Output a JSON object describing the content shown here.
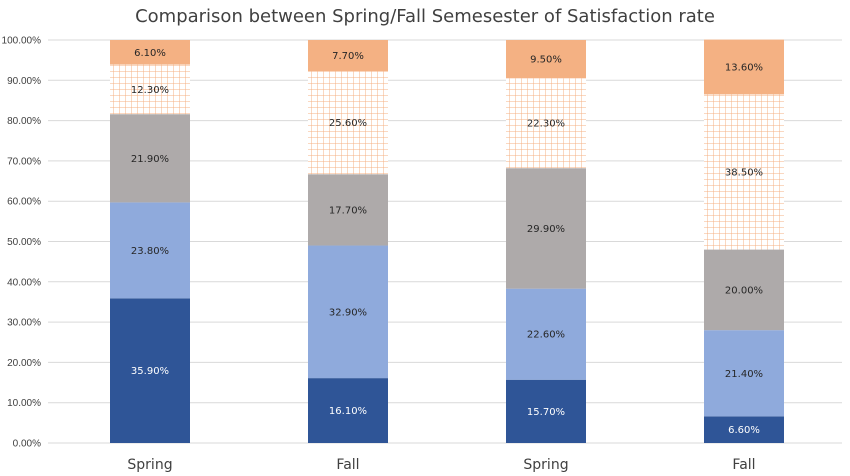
{
  "chart_data": {
    "type": "bar",
    "stacked": true,
    "title": "Comparison between Spring/Fall Semesester of Satisfaction rate",
    "xlabel": "",
    "ylabel": "",
    "categories": [
      "Spring",
      "Fall",
      "Spring",
      "Fall"
    ],
    "ylim": [
      0,
      100
    ],
    "y_ticks": [
      "0.00%",
      "10.00%",
      "20.00%",
      "30.00%",
      "40.00%",
      "50.00%",
      "60.00%",
      "70.00%",
      "80.00%",
      "90.00%",
      "100.00%"
    ],
    "grid": true,
    "legend": "none",
    "series": [
      {
        "values": [
          35.9,
          16.1,
          15.7,
          6.6
        ],
        "labels": [
          "35.90%",
          "16.10%",
          "15.70%",
          "6.60%"
        ],
        "color": "#2f5597",
        "pattern": "solid",
        "label_color": "#ffffff"
      },
      {
        "values": [
          23.8,
          32.9,
          22.6,
          21.4
        ],
        "labels": [
          "23.80%",
          "32.90%",
          "22.60%",
          "21.40%"
        ],
        "color": "#8faadc",
        "pattern": "solid",
        "label_color": "#262626"
      },
      {
        "values": [
          21.9,
          17.7,
          29.9,
          20.0
        ],
        "labels": [
          "21.90%",
          "17.70%",
          "29.90%",
          "20.00%"
        ],
        "color": "#aeaaaa",
        "pattern": "solid",
        "label_color": "#262626"
      },
      {
        "values": [
          12.3,
          25.6,
          22.3,
          38.5
        ],
        "labels": [
          "12.30%",
          "25.60%",
          "22.30%",
          "38.50%"
        ],
        "color": "#f4b183",
        "pattern": "grid",
        "label_color": "#262626"
      },
      {
        "values": [
          6.1,
          7.7,
          9.5,
          13.6
        ],
        "labels": [
          "6.10%",
          "7.70%",
          "9.50%",
          "13.60%"
        ],
        "color": "#f4b183",
        "pattern": "solid",
        "label_color": "#262626"
      }
    ]
  }
}
